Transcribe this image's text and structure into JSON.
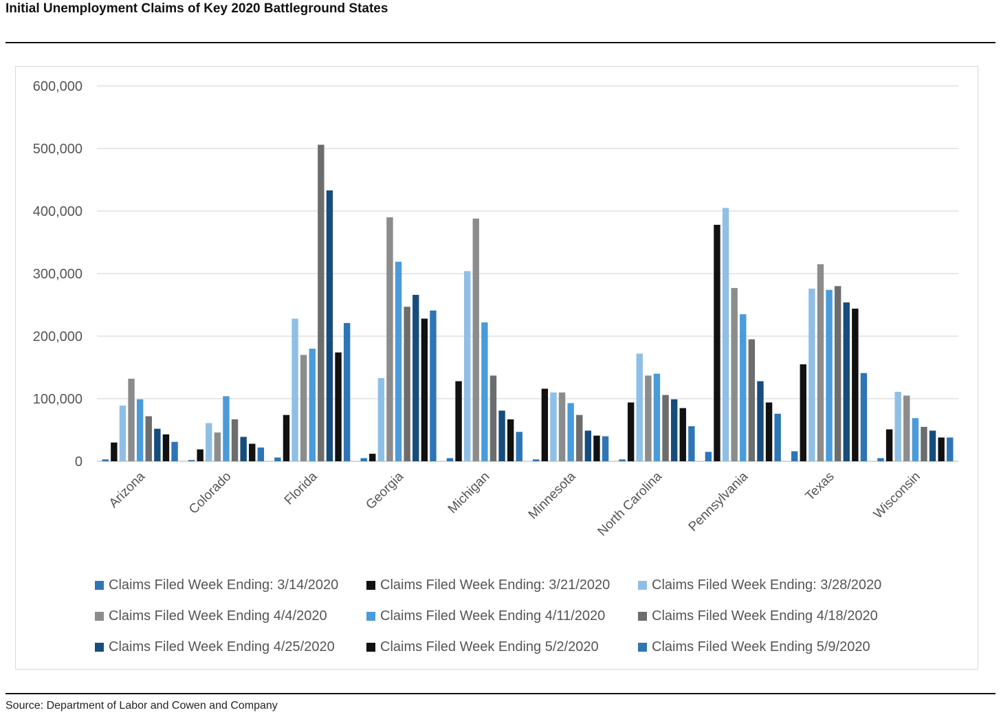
{
  "header": {
    "title": "Initial Unemployment Claims of Key 2020 Battleground States"
  },
  "footer": {
    "source": "Source: Department of Labor and Cowen and Company"
  },
  "chart_data": {
    "type": "bar",
    "title": "Initial Unemployment Claims of Key 2020 Battleground States",
    "xlabel": "",
    "ylabel": "",
    "ylim": [
      0,
      600000
    ],
    "yticks": [
      0,
      100000,
      200000,
      300000,
      400000,
      500000,
      600000
    ],
    "ytick_labels": [
      "0",
      "100,000",
      "200,000",
      "300,000",
      "400,000",
      "500,000",
      "600,000"
    ],
    "grid": true,
    "legend_position": "bottom",
    "categories": [
      "Arizona",
      "Colorado",
      "Florida",
      "Georgia",
      "Michigan",
      "Minnesota",
      "North Carolina",
      "Pennsylvania",
      "Texas",
      "Wisconsin"
    ],
    "series": [
      {
        "name": "Claims Filed Week Ending: 3/14/2020",
        "color": "#2e75b6",
        "values": [
          3000,
          2000,
          6000,
          5000,
          5000,
          3000,
          3000,
          15000,
          16000,
          5000
        ]
      },
      {
        "name": "Claims Filed Week Ending: 3/21/2020",
        "color": "#111111",
        "values": [
          30000,
          19000,
          74000,
          12000,
          128000,
          116000,
          94000,
          378000,
          155000,
          51000
        ]
      },
      {
        "name": "Claims Filed Week Ending: 3/28/2020",
        "color": "#8fbfe6",
        "values": [
          89000,
          61000,
          228000,
          133000,
          304000,
          110000,
          172000,
          405000,
          276000,
          111000
        ]
      },
      {
        "name": "Claims Filed Week Ending 4/4/2020",
        "color": "#8c8c8c",
        "values": [
          132000,
          46000,
          170000,
          390000,
          388000,
          110000,
          137000,
          277000,
          315000,
          105000
        ]
      },
      {
        "name": "Claims Filed Week Ending 4/11/2020",
        "color": "#4a9bda",
        "values": [
          99000,
          104000,
          180000,
          319000,
          222000,
          93000,
          140000,
          235000,
          274000,
          69000
        ]
      },
      {
        "name": "Claims Filed Week Ending 4/18/2020",
        "color": "#6d6d6d",
        "values": [
          72000,
          67000,
          506000,
          247000,
          137000,
          74000,
          106000,
          195000,
          280000,
          55000
        ]
      },
      {
        "name": "Claims Filed Week Ending 4/25/2020",
        "color": "#174d7c",
        "values": [
          52000,
          39000,
          433000,
          266000,
          81000,
          49000,
          99000,
          128000,
          254000,
          49000
        ]
      },
      {
        "name": "Claims Filed Week Ending 5/2/2020",
        "color": "#111111",
        "values": [
          43000,
          28000,
          174000,
          228000,
          67000,
          41000,
          85000,
          94000,
          244000,
          38000
        ]
      },
      {
        "name": "Claims Filed Week Ending 5/9/2020",
        "color": "#2e75b6",
        "values": [
          31000,
          22000,
          221000,
          241000,
          47000,
          40000,
          56000,
          76000,
          141000,
          38000
        ]
      }
    ]
  }
}
